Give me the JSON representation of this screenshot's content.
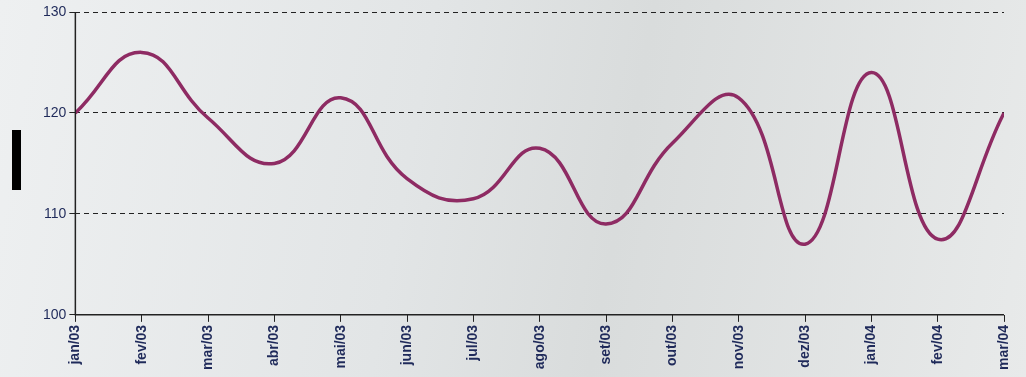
{
  "chart_data": {
    "type": "line",
    "categories": [
      "jan/03",
      "fev/03",
      "mar/03",
      "abr/03",
      "mai/03",
      "jun/03",
      "jul/03",
      "ago/03",
      "set/03",
      "out/03",
      "nov/03",
      "dez/03",
      "jan/04",
      "fev/04",
      "mar/04"
    ],
    "values": [
      120,
      126,
      119.5,
      115,
      121.5,
      113.5,
      111.5,
      116.5,
      109,
      117,
      121.5,
      107,
      124,
      107.5,
      120
    ],
    "color": "#8e2b63",
    "ylim": [
      100,
      130
    ],
    "yticks": [
      100,
      110,
      120,
      130
    ],
    "grid": true
  }
}
